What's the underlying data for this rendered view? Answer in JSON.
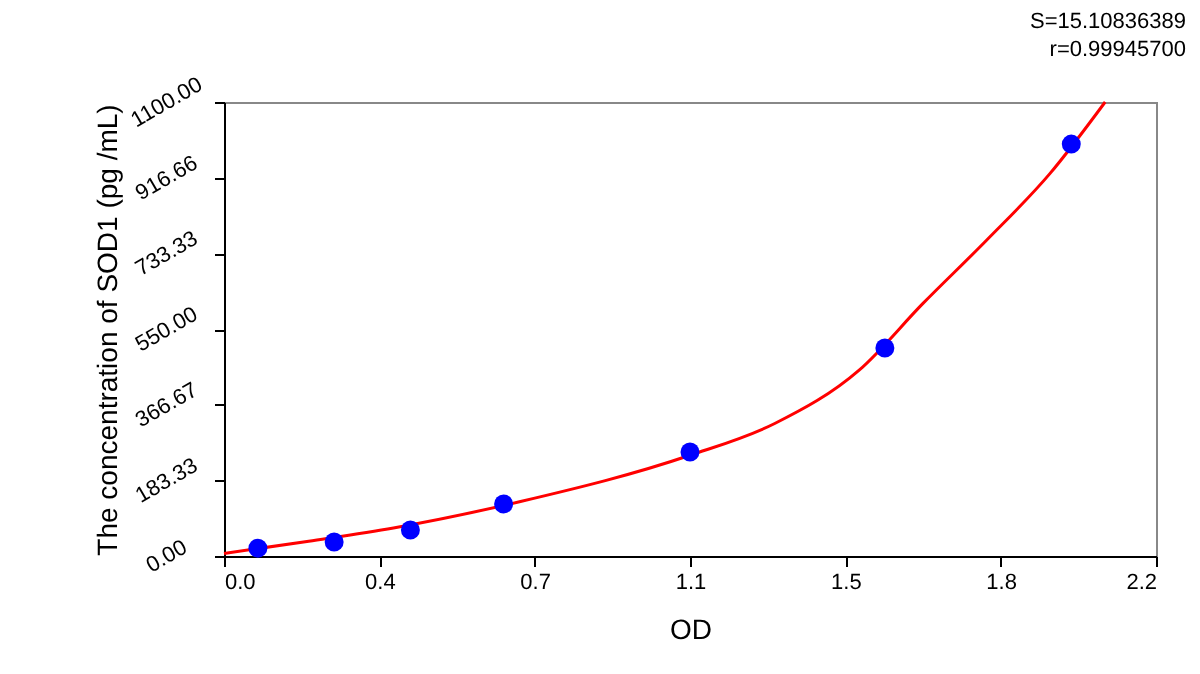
{
  "chart_data": {
    "type": "scatter",
    "xlabel": "OD",
    "ylabel": "The concentration of SOD1 (pg /mL)",
    "annotations": [
      "S=15.10836389",
      "r=0.99945700"
    ],
    "xlim": [
      0,
      2.2
    ],
    "ylim": [
      0,
      1100
    ],
    "xticks": [
      {
        "value": 0,
        "label": "0.0"
      },
      {
        "value": 0.3667,
        "label": "0.4"
      },
      {
        "value": 0.7333,
        "label": "0.7"
      },
      {
        "value": 1.1,
        "label": "1.1"
      },
      {
        "value": 1.4667,
        "label": "1.5"
      },
      {
        "value": 1.8333,
        "label": "1.8"
      },
      {
        "value": 2.2,
        "label": "2.2"
      }
    ],
    "yticks": [
      {
        "value": 0,
        "label": "0.00"
      },
      {
        "value": 183.33,
        "label": "183.33"
      },
      {
        "value": 366.67,
        "label": "366.67"
      },
      {
        "value": 550,
        "label": "550.00"
      },
      {
        "value": 733.33,
        "label": "733.33"
      },
      {
        "value": 916.66,
        "label": "916.66"
      },
      {
        "value": 1100,
        "label": "1100.00"
      }
    ],
    "grid": false,
    "series": [
      {
        "type": "line",
        "color": "#ff0000",
        "marker": "none",
        "x": [
          0,
          0.2,
          0.4,
          0.7,
          1.1,
          1.3,
          1.5,
          1.65,
          1.8,
          1.95,
          2.08
        ],
        "values": [
          6,
          36,
          68,
          132,
          244,
          321,
          451,
          612,
          765,
          927,
          1100
        ]
      },
      {
        "color": "#0000ff",
        "marker": "circle",
        "x": [
          0.08,
          0.26,
          0.44,
          0.66,
          1.1,
          1.56,
          2.0
        ],
        "values": [
          19,
          34,
          63,
          126,
          252,
          504,
          998
        ]
      }
    ]
  }
}
